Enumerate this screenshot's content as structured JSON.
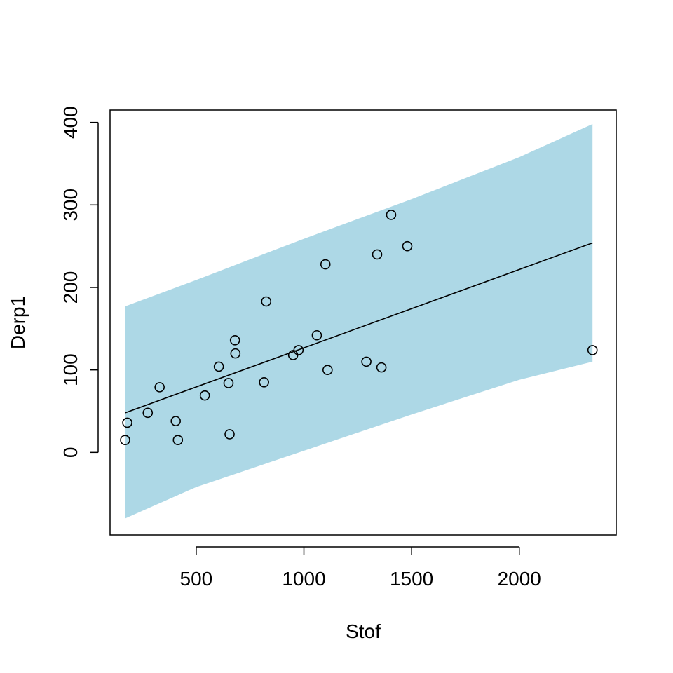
{
  "chart_data": {
    "type": "scatter",
    "xlabel": "Stof",
    "ylabel": "Derp1",
    "xlim": [
      100,
      2450
    ],
    "ylim": [
      -100,
      415
    ],
    "x_ticks": [
      500,
      1000,
      1500,
      2000
    ],
    "y_ticks": [
      0,
      100,
      200,
      300,
      400
    ],
    "x_tick_labels": [
      "500",
      "1000",
      "1500",
      "2000"
    ],
    "y_tick_labels": [
      "0",
      "100",
      "200",
      "300",
      "400"
    ],
    "band_color": "#add8e6",
    "point_color": "#000000",
    "line_color": "#000000",
    "grid": false,
    "points": [
      {
        "x": 170,
        "y": 15
      },
      {
        "x": 180,
        "y": 36
      },
      {
        "x": 275,
        "y": 48
      },
      {
        "x": 330,
        "y": 79
      },
      {
        "x": 405,
        "y": 38
      },
      {
        "x": 415,
        "y": 15
      },
      {
        "x": 540,
        "y": 69
      },
      {
        "x": 605,
        "y": 104
      },
      {
        "x": 650,
        "y": 84
      },
      {
        "x": 655,
        "y": 22
      },
      {
        "x": 680,
        "y": 136
      },
      {
        "x": 682,
        "y": 120
      },
      {
        "x": 815,
        "y": 85
      },
      {
        "x": 825,
        "y": 183
      },
      {
        "x": 950,
        "y": 118
      },
      {
        "x": 975,
        "y": 124
      },
      {
        "x": 1060,
        "y": 142
      },
      {
        "x": 1100,
        "y": 228
      },
      {
        "x": 1110,
        "y": 100
      },
      {
        "x": 1290,
        "y": 110
      },
      {
        "x": 1340,
        "y": 240
      },
      {
        "x": 1360,
        "y": 103
      },
      {
        "x": 1405,
        "y": 288
      },
      {
        "x": 1480,
        "y": 250
      },
      {
        "x": 2340,
        "y": 124
      }
    ],
    "fit_line": {
      "x": [
        170,
        2340
      ],
      "y": [
        48,
        254
      ]
    },
    "band": {
      "x": [
        170,
        500,
        1000,
        1500,
        2000,
        2340
      ],
      "upper": [
        177,
        209,
        259,
        307,
        358,
        398
      ],
      "lower": [
        -80,
        -42,
        2,
        46,
        88,
        110
      ]
    }
  }
}
